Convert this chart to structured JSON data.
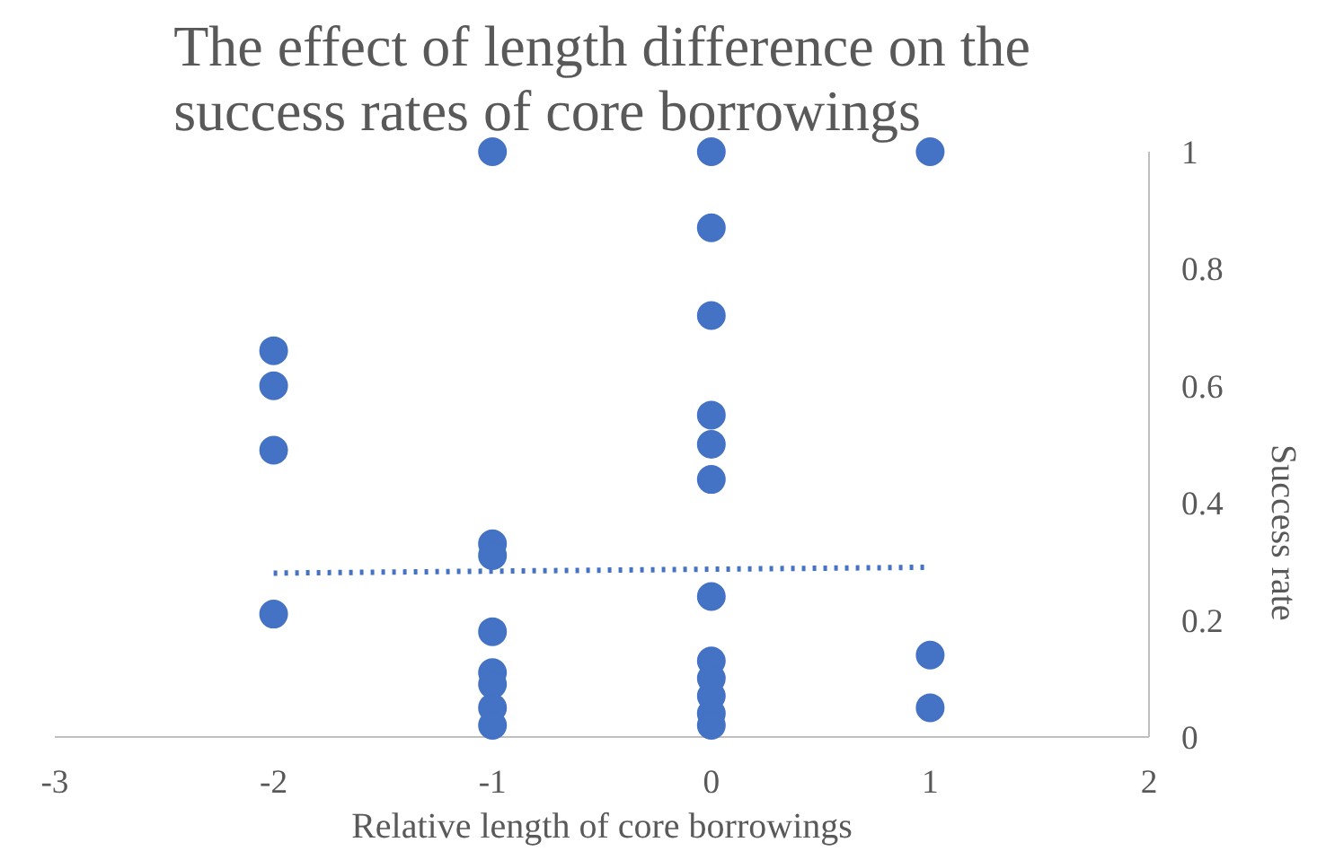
{
  "chart_data": {
    "type": "scatter",
    "title": "The effect of length difference on the success rates of core borrowings",
    "xlabel": "Relative length of core borrowings",
    "ylabel": "Success rate",
    "xlim": [
      -3,
      2
    ],
    "xticks": [
      -3,
      -2,
      -1,
      0,
      1,
      2
    ],
    "ylim": [
      0,
      1
    ],
    "yticks": [
      0,
      0.2,
      0.4,
      0.6,
      0.8,
      1
    ],
    "grid": false,
    "marker": "circle",
    "series": [
      {
        "color": "#4472c4",
        "x": [
          -2,
          -2,
          -2,
          -2,
          -1,
          -1,
          -1,
          -1,
          -1,
          -1,
          -1,
          -1,
          0,
          0,
          0,
          0,
          0,
          0,
          0,
          0,
          0,
          0,
          0,
          0,
          1,
          1,
          1
        ],
        "values": [
          0.66,
          0.6,
          0.49,
          0.21,
          1,
          0.33,
          0.31,
          0.18,
          0.11,
          0.09,
          0.05,
          0.02,
          1,
          0.87,
          0.72,
          0.55,
          0.5,
          0.44,
          0.24,
          0.13,
          0.1,
          0.07,
          0.04,
          0.02,
          1,
          0.14,
          0.05
        ]
      },
      {
        "type": "line",
        "line_style": "dotted",
        "marker": "none",
        "color": "#4472c4",
        "x": [
          -2,
          1
        ],
        "values": [
          0.28,
          0.29
        ]
      }
    ]
  }
}
